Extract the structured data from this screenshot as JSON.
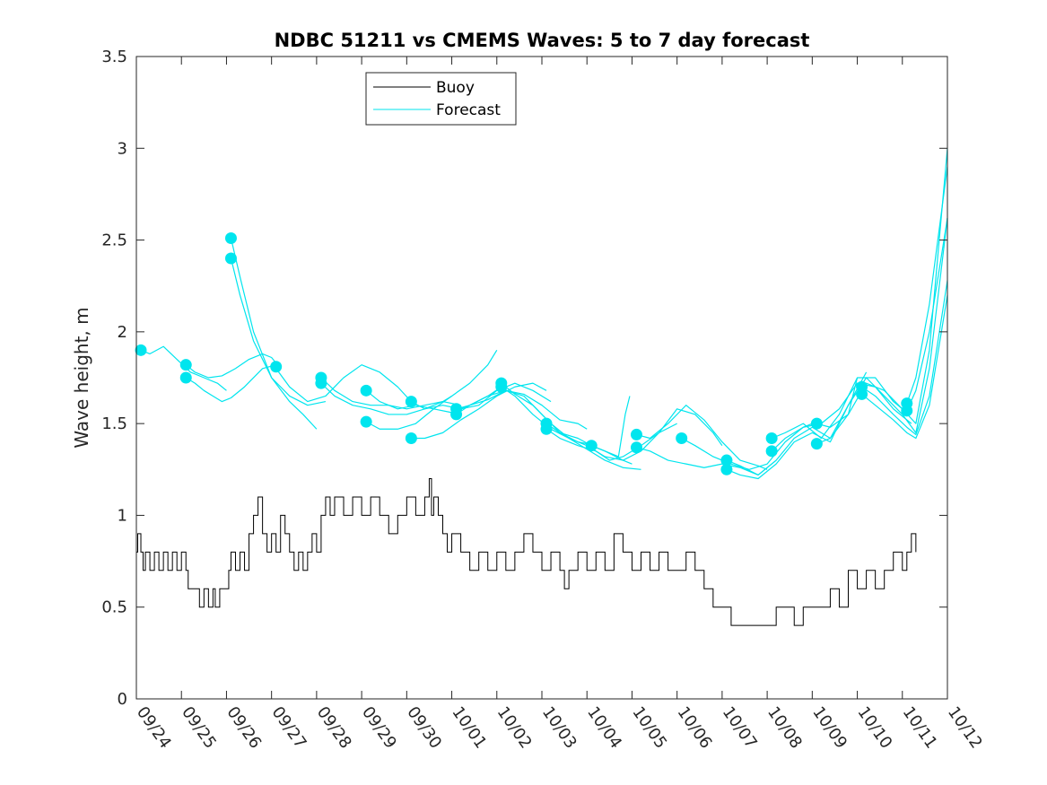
{
  "chart_data": {
    "type": "line",
    "title": "NDBC 51211 vs CMEMS Waves: 5 to 7 day forecast",
    "xlabel": "",
    "ylabel": "Wave height, m",
    "xlim": [
      0,
      18
    ],
    "ylim": [
      0,
      3.5
    ],
    "x_tick_labels": [
      "09/24",
      "09/25",
      "09/26",
      "09/27",
      "09/28",
      "09/29",
      "09/30",
      "10/01",
      "10/02",
      "10/03",
      "10/04",
      "10/05",
      "10/06",
      "10/07",
      "10/08",
      "10/09",
      "10/10",
      "10/11",
      "10/12"
    ],
    "y_ticks": [
      0,
      0.5,
      1,
      1.5,
      2,
      2.5,
      3,
      3.5
    ],
    "y_tick_labels": [
      "0",
      "0.5",
      "1",
      "1.5",
      "2",
      "2.5",
      "3",
      "3.5"
    ],
    "legend": {
      "placement": "top-left",
      "entries": [
        "Buoy",
        "Forecast"
      ]
    },
    "colors": {
      "buoy": "#000000",
      "forecast": "#00e5ee",
      "axis": "#262626"
    },
    "series": [
      {
        "name": "Buoy",
        "x": [
          0,
          0.03,
          0.1,
          0.15,
          0.2,
          0.3,
          0.4,
          0.5,
          0.6,
          0.7,
          0.8,
          0.9,
          1.0,
          1.1,
          1.15,
          1.2,
          1.3,
          1.4,
          1.5,
          1.6,
          1.7,
          1.75,
          1.85,
          1.95,
          2.05,
          2.1,
          2.2,
          2.3,
          2.4,
          2.5,
          2.6,
          2.7,
          2.8,
          2.9,
          3.0,
          3.1,
          3.2,
          3.3,
          3.4,
          3.5,
          3.6,
          3.7,
          3.8,
          3.9,
          4.0,
          4.1,
          4.2,
          4.3,
          4.4,
          4.6,
          4.8,
          5.0,
          5.2,
          5.4,
          5.6,
          5.8,
          6.0,
          6.2,
          6.4,
          6.5,
          6.55,
          6.6,
          6.7,
          6.8,
          6.9,
          7.0,
          7.2,
          7.4,
          7.6,
          7.8,
          8.0,
          8.2,
          8.4,
          8.6,
          8.8,
          9.0,
          9.2,
          9.4,
          9.5,
          9.6,
          9.8,
          10.0,
          10.2,
          10.4,
          10.6,
          10.8,
          11.0,
          11.2,
          11.4,
          11.6,
          11.8,
          12.0,
          12.2,
          12.4,
          12.6,
          12.8,
          13.0,
          13.2,
          13.4,
          13.6,
          13.8,
          14.0,
          14.2,
          14.4,
          14.6,
          14.8,
          15.0,
          15.2,
          15.4,
          15.6,
          15.8,
          16.0,
          16.2,
          16.4,
          16.6,
          16.8,
          17.0,
          17.1,
          17.2,
          17.3
        ],
        "values": [
          0.8,
          0.9,
          0.8,
          0.7,
          0.8,
          0.7,
          0.8,
          0.7,
          0.8,
          0.7,
          0.8,
          0.7,
          0.8,
          0.7,
          0.6,
          0.6,
          0.6,
          0.5,
          0.6,
          0.5,
          0.6,
          0.5,
          0.6,
          0.6,
          0.7,
          0.8,
          0.7,
          0.8,
          0.7,
          0.9,
          1.0,
          1.1,
          0.9,
          0.8,
          0.9,
          0.8,
          1.0,
          0.9,
          0.8,
          0.7,
          0.8,
          0.7,
          0.8,
          0.9,
          0.8,
          1.0,
          1.1,
          1.0,
          1.1,
          1.0,
          1.1,
          1.0,
          1.1,
          1.0,
          0.9,
          1.0,
          1.1,
          1.0,
          1.1,
          1.2,
          1.0,
          1.1,
          1.0,
          0.9,
          0.8,
          0.9,
          0.8,
          0.7,
          0.8,
          0.7,
          0.8,
          0.7,
          0.8,
          0.9,
          0.8,
          0.7,
          0.8,
          0.7,
          0.6,
          0.7,
          0.8,
          0.7,
          0.8,
          0.7,
          0.9,
          0.8,
          0.7,
          0.8,
          0.7,
          0.8,
          0.7,
          0.7,
          0.8,
          0.7,
          0.6,
          0.5,
          0.5,
          0.4,
          0.4,
          0.4,
          0.4,
          0.4,
          0.5,
          0.5,
          0.4,
          0.5,
          0.5,
          0.5,
          0.6,
          0.5,
          0.7,
          0.6,
          0.7,
          0.6,
          0.7,
          0.8,
          0.7,
          0.8,
          0.9,
          0.8
        ]
      },
      {
        "name": "Forecast",
        "segments": [
          {
            "x": [
              0.1,
              0.3,
              0.6,
              0.9,
              1.2,
              1.5,
              1.8,
              2.0
            ],
            "values": [
              1.9,
              1.88,
              1.92,
              1.85,
              1.78,
              1.75,
              1.72,
              1.68
            ]
          },
          {
            "x": [
              1.1,
              1.3,
              1.5,
              1.7,
              1.9,
              2.1,
              2.4,
              2.8,
              3.1
            ],
            "values": [
              1.75,
              1.72,
              1.68,
              1.65,
              1.62,
              1.64,
              1.7,
              1.8,
              1.82
            ]
          },
          {
            "x": [
              1.1,
              1.3,
              1.6,
              1.9,
              2.2,
              2.5,
              2.8,
              3.0,
              3.2
            ],
            "values": [
              1.82,
              1.78,
              1.75,
              1.76,
              1.8,
              1.85,
              1.88,
              1.86,
              1.8
            ]
          },
          {
            "x": [
              2.1,
              2.3,
              2.6,
              3.0,
              3.4,
              3.7,
              4.0
            ],
            "values": [
              2.51,
              2.3,
              2.0,
              1.75,
              1.62,
              1.55,
              1.47
            ]
          },
          {
            "x": [
              2.1,
              2.3,
              2.6,
              3.0,
              3.4,
              3.8,
              4.2
            ],
            "values": [
              2.4,
              2.2,
              1.95,
              1.75,
              1.65,
              1.6,
              1.62
            ]
          },
          {
            "x": [
              3.1,
              3.4,
              3.8,
              4.2,
              4.6,
              5.0,
              5.4,
              5.8,
              6.1
            ],
            "values": [
              1.8,
              1.7,
              1.62,
              1.65,
              1.75,
              1.82,
              1.78,
              1.7,
              1.62
            ]
          },
          {
            "x": [
              4.1,
              4.4,
              4.8,
              5.2,
              5.6,
              6.0,
              6.4,
              6.8,
              7.0
            ],
            "values": [
              1.75,
              1.68,
              1.62,
              1.6,
              1.6,
              1.58,
              1.6,
              1.62,
              1.65
            ]
          },
          {
            "x": [
              4.1,
              4.4,
              4.8,
              5.2,
              5.6,
              6.0,
              6.4,
              6.8,
              7.2
            ],
            "values": [
              1.72,
              1.65,
              1.6,
              1.58,
              1.55,
              1.55,
              1.58,
              1.62,
              1.6
            ]
          },
          {
            "x": [
              5.1,
              5.4,
              5.8,
              6.2,
              6.6,
              7.0,
              7.4,
              7.8,
              8.0
            ],
            "values": [
              1.51,
              1.47,
              1.47,
              1.5,
              1.58,
              1.65,
              1.72,
              1.82,
              1.9
            ]
          },
          {
            "x": [
              5.1,
              5.4,
              5.8,
              6.2,
              6.6,
              7.0,
              7.4,
              7.8,
              8.1
            ],
            "values": [
              1.68,
              1.62,
              1.58,
              1.6,
              1.58,
              1.56,
              1.6,
              1.65,
              1.7
            ]
          },
          {
            "x": [
              6.1,
              6.4,
              6.8,
              7.2,
              7.6,
              8.0,
              8.4,
              8.8,
              9.1
            ],
            "values": [
              1.42,
              1.42,
              1.45,
              1.52,
              1.58,
              1.65,
              1.7,
              1.72,
              1.68
            ]
          },
          {
            "x": [
              6.1,
              6.4,
              6.8,
              7.2,
              7.6,
              8.0,
              8.4,
              8.8,
              9.2
            ],
            "values": [
              1.62,
              1.58,
              1.6,
              1.58,
              1.6,
              1.68,
              1.72,
              1.68,
              1.62
            ]
          },
          {
            "x": [
              7.1,
              7.4,
              7.8,
              8.2,
              8.6,
              9.0,
              9.4,
              9.8,
              10.0
            ],
            "values": [
              1.58,
              1.6,
              1.65,
              1.68,
              1.66,
              1.6,
              1.52,
              1.5,
              1.47
            ]
          },
          {
            "x": [
              7.1,
              7.4,
              7.8,
              8.2,
              8.6,
              9.0,
              9.4,
              9.8,
              10.2
            ],
            "values": [
              1.55,
              1.6,
              1.63,
              1.68,
              1.65,
              1.55,
              1.45,
              1.4,
              1.38
            ]
          },
          {
            "x": [
              8.1,
              8.4,
              8.8,
              9.2,
              9.6,
              10.0,
              10.4,
              10.8,
              11.0
            ],
            "values": [
              1.72,
              1.66,
              1.6,
              1.5,
              1.42,
              1.38,
              1.32,
              1.3,
              1.28
            ]
          },
          {
            "x": [
              8.1,
              8.4,
              8.8,
              9.2,
              9.6,
              10.0,
              10.4,
              10.8,
              11.2
            ],
            "values": [
              1.7,
              1.65,
              1.55,
              1.47,
              1.42,
              1.36,
              1.3,
              1.26,
              1.25
            ]
          },
          {
            "x": [
              9.1,
              9.4,
              9.8,
              10.1,
              10.4,
              10.7,
              10.85,
              10.95
            ],
            "values": [
              1.5,
              1.45,
              1.42,
              1.38,
              1.35,
              1.32,
              1.55,
              1.65
            ]
          },
          {
            "x": [
              9.1,
              9.4,
              9.8,
              10.2,
              10.5,
              10.8,
              11.2,
              11.6,
              12.0
            ],
            "values": [
              1.47,
              1.42,
              1.38,
              1.35,
              1.3,
              1.32,
              1.38,
              1.45,
              1.5
            ]
          },
          {
            "x": [
              10.1,
              10.4,
              10.8,
              11.2,
              11.6,
              12.0,
              12.4,
              12.8,
              13.0
            ],
            "values": [
              1.38,
              1.35,
              1.3,
              1.35,
              1.45,
              1.58,
              1.55,
              1.45,
              1.38
            ]
          },
          {
            "x": [
              11.1,
              11.4,
              11.8,
              12.2,
              12.6,
              13.0,
              13.4,
              13.8,
              14.0
            ],
            "values": [
              1.44,
              1.42,
              1.5,
              1.6,
              1.52,
              1.4,
              1.3,
              1.27,
              1.25
            ]
          },
          {
            "x": [
              11.1,
              11.4,
              11.8,
              12.2,
              12.6,
              13.0,
              13.4,
              13.8,
              14.2
            ],
            "values": [
              1.37,
              1.35,
              1.3,
              1.28,
              1.26,
              1.28,
              1.26,
              1.22,
              1.3
            ]
          },
          {
            "x": [
              12.1,
              12.4,
              12.8,
              13.2,
              13.6,
              14.0,
              14.4,
              14.8,
              15.0
            ],
            "values": [
              1.42,
              1.38,
              1.32,
              1.28,
              1.25,
              1.28,
              1.4,
              1.48,
              1.5
            ]
          },
          {
            "x": [
              13.1,
              13.4,
              13.8,
              14.2,
              14.6,
              15.0,
              15.4,
              15.8,
              16.0
            ],
            "values": [
              1.3,
              1.27,
              1.22,
              1.3,
              1.42,
              1.48,
              1.42,
              1.55,
              1.75
            ]
          },
          {
            "x": [
              13.1,
              13.4,
              13.8,
              14.2,
              14.6,
              15.0,
              15.4,
              15.8,
              16.2
            ],
            "values": [
              1.25,
              1.22,
              1.2,
              1.28,
              1.4,
              1.45,
              1.4,
              1.6,
              1.78
            ]
          },
          {
            "x": [
              14.1,
              14.4,
              14.8,
              15.2,
              15.6,
              16.0,
              16.4,
              16.8,
              17.0
            ],
            "values": [
              1.42,
              1.45,
              1.5,
              1.42,
              1.55,
              1.75,
              1.75,
              1.62,
              1.58
            ]
          },
          {
            "x": [
              14.1,
              14.4,
              14.8,
              15.2,
              15.6,
              16.0,
              16.4,
              16.8,
              17.2
            ],
            "values": [
              1.35,
              1.42,
              1.48,
              1.5,
              1.58,
              1.72,
              1.7,
              1.58,
              1.5
            ]
          },
          {
            "x": [
              15.1,
              15.4,
              15.8,
              16.2,
              16.6,
              17.0,
              17.3,
              17.6,
              18.0
            ],
            "values": [
              1.5,
              1.48,
              1.55,
              1.72,
              1.68,
              1.58,
              1.5,
              1.9,
              3.0
            ]
          },
          {
            "x": [
              15.1,
              15.4,
              15.8,
              16.2,
              16.6,
              17.0,
              17.3,
              17.6,
              18.0
            ],
            "values": [
              1.39,
              1.42,
              1.6,
              1.75,
              1.65,
              1.55,
              1.45,
              1.8,
              2.62
            ]
          },
          {
            "x": [
              16.1,
              16.4,
              16.8,
              17.1,
              17.3,
              17.6,
              18.0
            ],
            "values": [
              1.7,
              1.65,
              1.55,
              1.48,
              1.44,
              1.65,
              2.28
            ]
          },
          {
            "x": [
              16.1,
              16.4,
              16.8,
              17.1,
              17.3,
              17.6,
              18.0
            ],
            "values": [
              1.66,
              1.6,
              1.52,
              1.45,
              1.42,
              1.6,
              2.2
            ]
          },
          {
            "x": [
              17.1,
              17.3,
              17.6,
              18.0
            ],
            "values": [
              1.61,
              1.75,
              2.15,
              2.9
            ]
          },
          {
            "x": [
              17.1,
              17.3,
              17.6,
              18.0
            ],
            "values": [
              1.57,
              1.68,
              2.0,
              2.62
            ]
          }
        ],
        "markers": {
          "x": [
            0.1,
            1.1,
            1.1,
            2.1,
            2.1,
            3.1,
            4.1,
            4.1,
            5.1,
            5.1,
            6.1,
            6.1,
            7.1,
            7.1,
            8.1,
            8.1,
            9.1,
            9.1,
            10.1,
            11.1,
            11.1,
            12.1,
            13.1,
            13.1,
            14.1,
            14.1,
            15.1,
            15.1,
            16.1,
            16.1,
            17.1,
            17.1
          ],
          "values": [
            1.9,
            1.82,
            1.75,
            2.51,
            2.4,
            1.81,
            1.75,
            1.72,
            1.68,
            1.51,
            1.62,
            1.42,
            1.58,
            1.55,
            1.72,
            1.7,
            1.5,
            1.47,
            1.38,
            1.44,
            1.37,
            1.42,
            1.3,
            1.25,
            1.42,
            1.35,
            1.5,
            1.39,
            1.7,
            1.66,
            1.61,
            1.57
          ]
        }
      }
    ]
  }
}
